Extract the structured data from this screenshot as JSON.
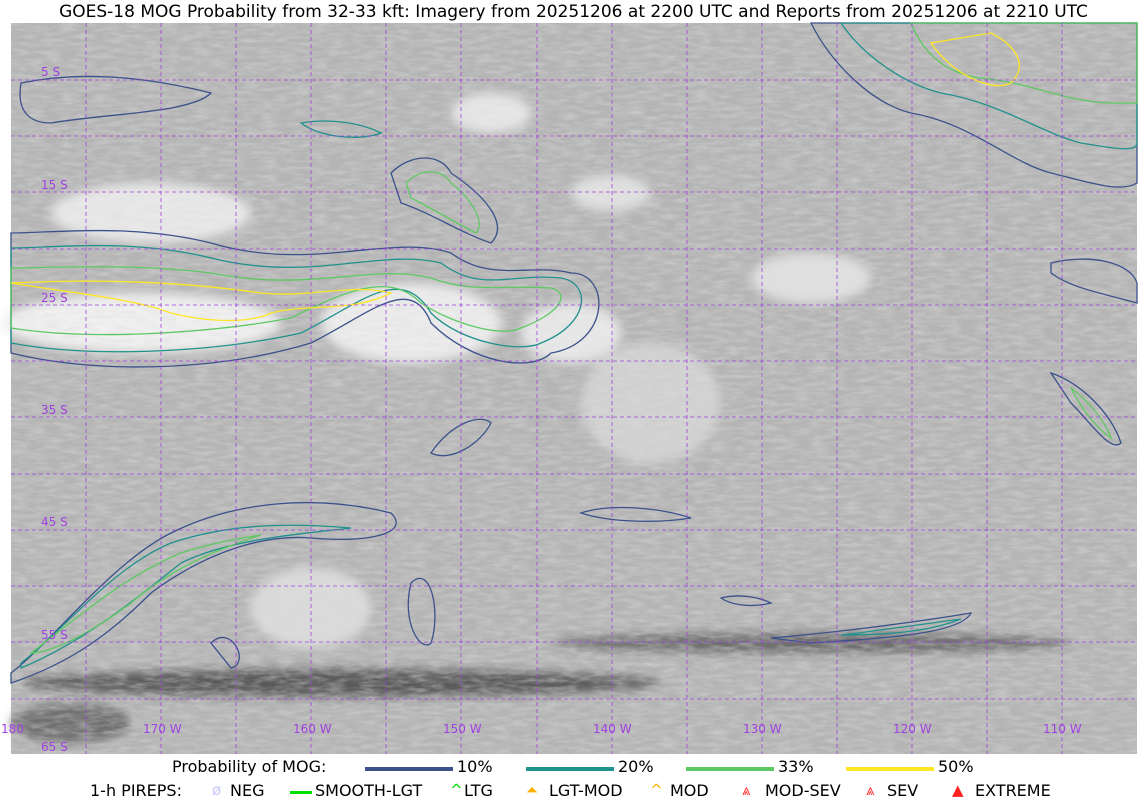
{
  "title": "GOES-18 MOG Probability from 32-33 kft: Imagery from 20251206 at 2200 UTC and Reports from 20251206 at 2210 UTC",
  "map": {
    "latitude_labels": [
      "5 S",
      "15 S",
      "25 S",
      "35 S",
      "45 S",
      "55 S",
      "65 S"
    ],
    "longitude_labels": [
      "180",
      "170 W",
      "160 W",
      "150 W",
      "140 W",
      "130 W",
      "120 W",
      "110 W"
    ],
    "grid_color": "#a040e0",
    "grid_spacing_degrees": 5
  },
  "legend": {
    "probability_title": "Probability of MOG:",
    "levels": [
      {
        "label": "10%",
        "color": "#3b518b"
      },
      {
        "label": "20%",
        "color": "#21918c"
      },
      {
        "label": "33%",
        "color": "#5ec962"
      },
      {
        "label": "50%",
        "color": "#fde725"
      }
    ],
    "pireps_title": "1-h PIREPS:",
    "pireps": [
      {
        "label": "NEG",
        "color": "#c8c8ff",
        "icon": "neg-symbol-icon"
      },
      {
        "label": "SMOOTH-LGT",
        "color": "#00e000",
        "icon": "smooth-lgt-symbol-icon"
      },
      {
        "label": "LTG",
        "color": "#00e000",
        "icon": "ltg-symbol-icon"
      },
      {
        "label": "LGT-MOD",
        "color": "#ffb000",
        "icon": "lgt-mod-symbol-icon"
      },
      {
        "label": "MOD",
        "color": "#ffb000",
        "icon": "mod-symbol-icon"
      },
      {
        "label": "MOD-SEV",
        "color": "#ff3030",
        "icon": "mod-sev-symbol-icon"
      },
      {
        "label": "SEV",
        "color": "#ff3030",
        "icon": "sev-symbol-icon"
      },
      {
        "label": "EXTREME",
        "color": "#ff2020",
        "icon": "extreme-symbol-icon"
      }
    ]
  }
}
